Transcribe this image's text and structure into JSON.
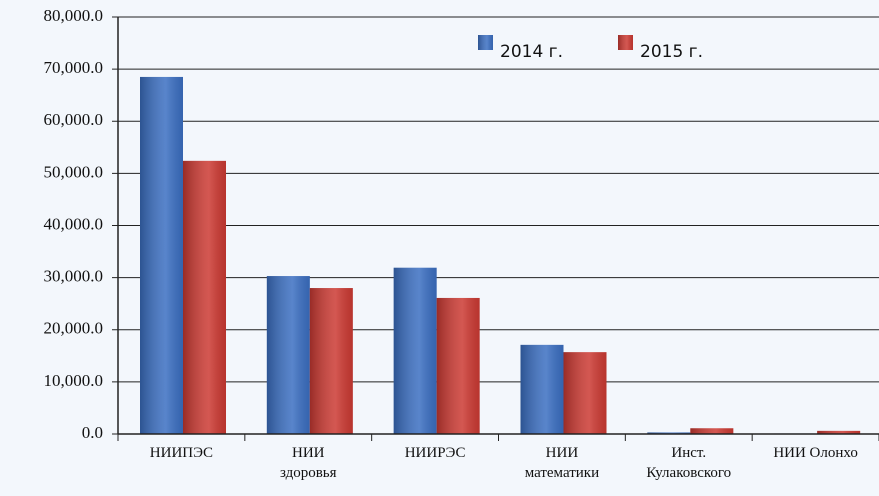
{
  "chart_data": {
    "type": "bar",
    "categories": [
      "НИИПЭС",
      "НИИ\nздоровья",
      "НИИРЭС",
      "НИИ\nматематики",
      "Инст.\nКулаковского",
      "НИИ Олонхо"
    ],
    "series": [
      {
        "name": "2014 г.",
        "color": "#3b6fc2",
        "values": [
          68500,
          30300,
          31900,
          17100,
          300,
          100
        ]
      },
      {
        "name": "2015 г.",
        "color": "#cc3a33",
        "values": [
          52400,
          28000,
          26100,
          15700,
          1100,
          600
        ]
      }
    ],
    "ylim": [
      0,
      80000
    ],
    "yticks": [
      {
        "value": 0,
        "label": "0.0"
      },
      {
        "value": 10000,
        "label": "10,000.0"
      },
      {
        "value": 20000,
        "label": "20,000.0"
      },
      {
        "value": 30000,
        "label": "30,000.0"
      },
      {
        "value": 40000,
        "label": "40,000.0"
      },
      {
        "value": 50000,
        "label": "50,000.0"
      },
      {
        "value": 60000,
        "label": "60,000.0"
      },
      {
        "value": 70000,
        "label": "70,000.0"
      },
      {
        "value": 80000,
        "label": "80,000.0"
      }
    ],
    "grid": true
  }
}
